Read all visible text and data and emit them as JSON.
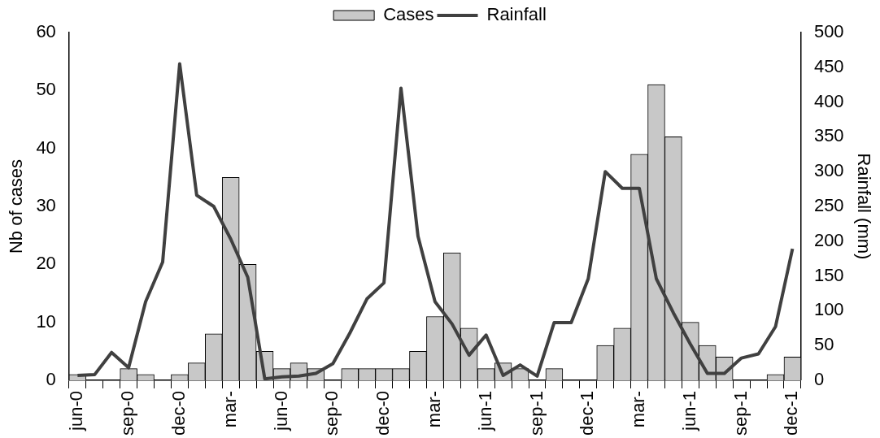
{
  "chart_data": {
    "type": "bar",
    "categories": [
      "jun-0",
      null,
      null,
      "sep-0",
      null,
      null,
      "dec-0",
      null,
      null,
      "mar-",
      null,
      null,
      "jun-0",
      null,
      null,
      "sep-0",
      null,
      null,
      "dec-0",
      null,
      null,
      "mar-",
      null,
      null,
      "jun-1",
      null,
      null,
      "sep-1",
      null,
      null,
      "dec-1",
      null,
      null,
      "mar-",
      null,
      null,
      "jun-1",
      null,
      null,
      "sep-1",
      null,
      null,
      "dec-1"
    ],
    "series": [
      {
        "name": "Cases",
        "color": "#c8c8c8",
        "values": [
          1,
          0,
          0,
          2,
          1,
          0,
          1,
          3,
          8,
          35,
          20,
          5,
          2,
          3,
          2,
          0,
          2,
          2,
          2,
          2,
          5,
          11,
          22,
          9,
          2,
          3,
          2,
          0,
          2,
          0,
          0,
          6,
          9,
          39,
          51,
          42,
          10,
          6,
          4,
          0,
          0,
          1,
          4
        ]
      },
      {
        "name": "Rainfall",
        "type": "line",
        "axis": "y2",
        "color": "#404040",
        "values": [
          7,
          8,
          40,
          18,
          113,
          170,
          455,
          266,
          250,
          203,
          148,
          2,
          5,
          6,
          10,
          24,
          68,
          117,
          140,
          420,
          207,
          113,
          81,
          36,
          65,
          7,
          22,
          6,
          83,
          83,
          146,
          300,
          276,
          276,
          146,
          97,
          52,
          10,
          10,
          32,
          38,
          77,
          189
        ]
      }
    ],
    "ylabel": "Nb of cases",
    "y2label": "Rainfall (mm)",
    "ylim": [
      0,
      60
    ],
    "yticks": [
      0,
      10,
      20,
      30,
      40,
      50,
      60
    ],
    "y2lim": [
      0,
      500
    ],
    "y2ticks": [
      0,
      50,
      100,
      150,
      200,
      250,
      300,
      350,
      400,
      450,
      500
    ],
    "legend": "top",
    "grid": false
  }
}
